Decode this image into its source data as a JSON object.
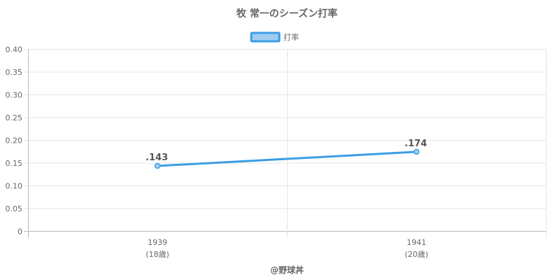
{
  "chart_data": {
    "type": "line",
    "title": "牧 常一のシーズン打率",
    "categories": [
      "1939",
      "1941"
    ],
    "category_sublabels": [
      "(18歳)",
      "(20歳)"
    ],
    "series": [
      {
        "name": "打率",
        "values": [
          0.143,
          0.174
        ],
        "data_labels": [
          ".143",
          ".174"
        ]
      }
    ],
    "ylim": [
      0,
      0.4
    ],
    "yticks": [
      0,
      0.05,
      0.1,
      0.15,
      0.2,
      0.25,
      0.3,
      0.35,
      0.4
    ],
    "ytick_labels": [
      "0",
      "0.05",
      "0.10",
      "0.15",
      "0.20",
      "0.25",
      "0.30",
      "0.35",
      "0.40"
    ],
    "grid": true,
    "legend_position": "top-center",
    "colors": {
      "line": "#3a9ee4",
      "legend_fill": "#9fcdf0",
      "grid": "#e6e6e6",
      "axis": "#bbbbbb"
    }
  },
  "credit": "@野球丼"
}
